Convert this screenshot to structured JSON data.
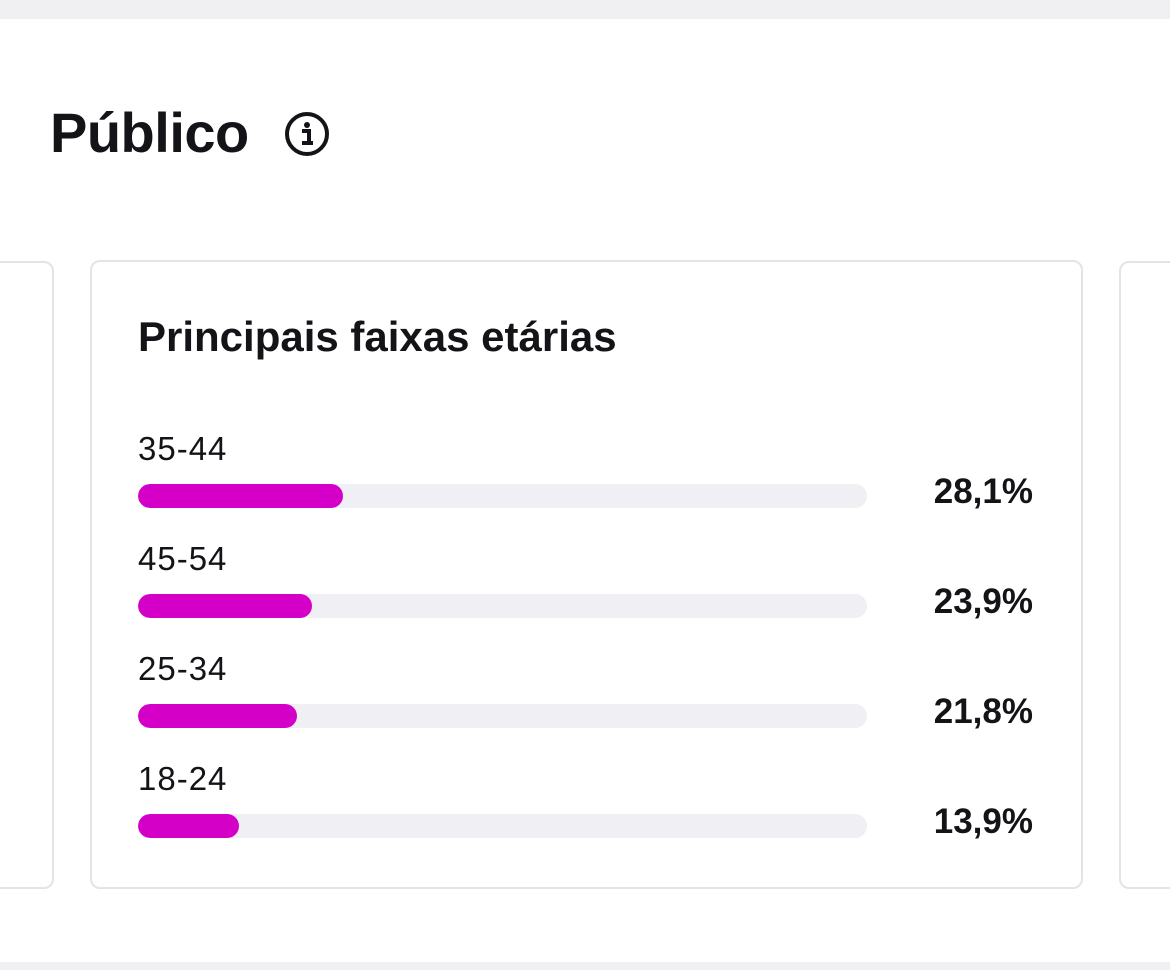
{
  "header": {
    "title": "Público"
  },
  "card": {
    "title": "Principais faixas etárias",
    "categories": [
      "35-44",
      "45-54",
      "25-34",
      "18-24"
    ],
    "values": [
      28.1,
      23.9,
      21.8,
      13.9
    ],
    "value_labels": [
      "28,1%",
      "23,9%",
      "21,8%",
      "13,9%"
    ],
    "color": "#d400c8",
    "xlim": [
      0,
      100
    ]
  }
}
